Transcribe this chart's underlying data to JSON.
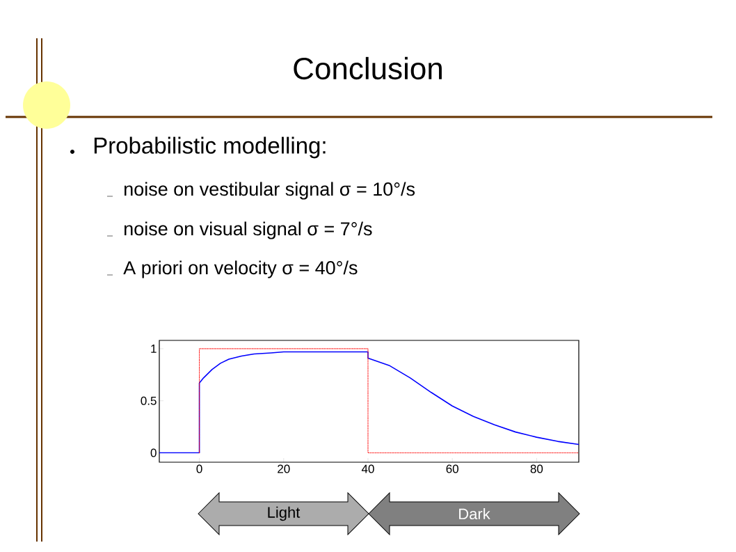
{
  "chart_data": {
    "type": "line",
    "title": "Conclusion",
    "annotations": [
      "Probabilistic modelling:",
      "noise on vestibular signal σ = 10°/s",
      "noise on visual signal σ = 7°/s",
      "A priori on velocity σ = 40°/s",
      "Light",
      "Dark"
    ],
    "xlim": [
      -9.5,
      90
    ],
    "ylim": [
      -0.09,
      1.08
    ],
    "xticks": [
      0,
      20,
      40,
      60,
      80
    ],
    "yticks": [
      0,
      0.5,
      1
    ],
    "grid": false,
    "series": [
      {
        "color": "#ff0000",
        "line_style": "dotted",
        "x": [
          0,
          0,
          40,
          40,
          90
        ],
        "values": [
          0,
          1,
          1,
          0,
          0
        ]
      },
      {
        "color": "#0000ff",
        "line_style": "solid",
        "x": [
          -9.5,
          0,
          0,
          1,
          2,
          3,
          5,
          7,
          10,
          13,
          17,
          20,
          40,
          40,
          45,
          50,
          55,
          60,
          65,
          70,
          75,
          80,
          85,
          90
        ],
        "values": [
          0,
          0,
          0.67,
          0.72,
          0.76,
          0.8,
          0.86,
          0.9,
          0.93,
          0.95,
          0.96,
          0.97,
          0.97,
          0.91,
          0.84,
          0.72,
          0.58,
          0.45,
          0.35,
          0.27,
          0.2,
          0.15,
          0.11,
          0.08
        ]
      }
    ]
  }
}
